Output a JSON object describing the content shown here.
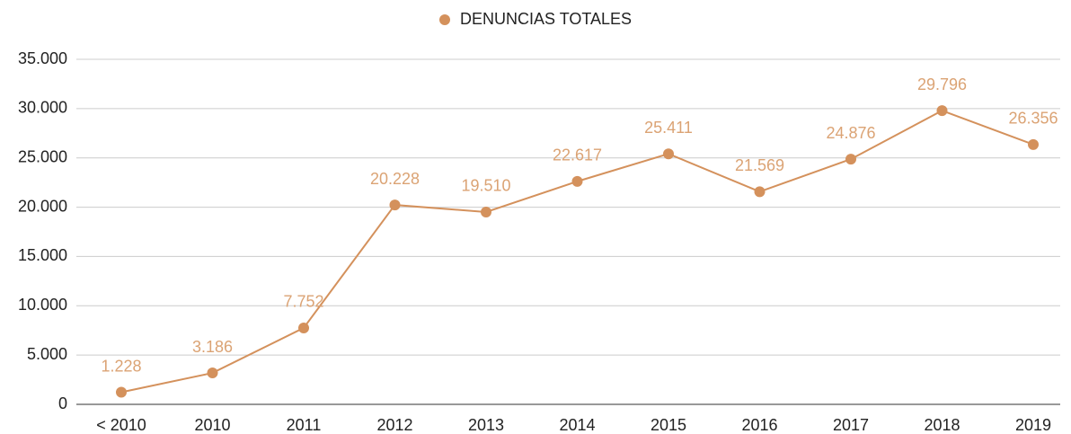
{
  "chart_data": {
    "type": "line",
    "categories": [
      "< 2010",
      "2010",
      "2011",
      "2012",
      "2013",
      "2014",
      "2015",
      "2016",
      "2017",
      "2018",
      "2019"
    ],
    "series": [
      {
        "name": "DENUNCIAS TOTALES",
        "color": "#d4915c",
        "values": [
          1228,
          3186,
          7752,
          20228,
          19510,
          22617,
          25411,
          21569,
          24876,
          29796,
          26356
        ],
        "value_labels": [
          "1.228",
          "3.186",
          "7.752",
          "20.228",
          "19.510",
          "22.617",
          "25.411",
          "21.569",
          "24.876",
          "29.796",
          "26.356"
        ]
      }
    ],
    "ylim": [
      0,
      35000
    ],
    "yticks": [
      0,
      {
        "value": 5000,
        "label": "5.000"
      },
      {
        "value": 10000,
        "label": "10.000"
      },
      {
        "value": 15000,
        "label": "15.000"
      },
      {
        "value": 20000,
        "label": "20.000"
      },
      {
        "value": 25000,
        "label": "25.000"
      },
      {
        "value": 30000,
        "label": "30.000"
      },
      {
        "value": 35000,
        "label": "35.000"
      }
    ],
    "grid": true,
    "legend": "top"
  }
}
